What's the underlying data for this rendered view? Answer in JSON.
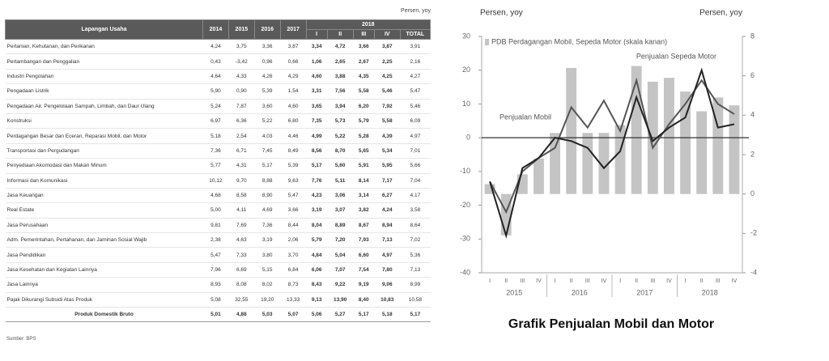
{
  "table": {
    "unit": "Persen, yoy",
    "header": {
      "label": "Lapangan Usaha",
      "years": [
        "2014",
        "2015",
        "2016",
        "2017"
      ],
      "group": "2018",
      "sub": [
        "I",
        "II",
        "III",
        "IV",
        "TOTAL"
      ]
    },
    "rows": [
      [
        "Pertanian, Kehutanan, dan Perikanan",
        "4,24",
        "3,75",
        "3,36",
        "3,87",
        "3,34",
        "4,72",
        "3,66",
        "3,87",
        "3,91"
      ],
      [
        "Pertambangan dan Penggalian",
        "0,43",
        "-3,42",
        "0,96",
        "0,66",
        "1,06",
        "2,65",
        "2,67",
        "2,25",
        "2,16"
      ],
      [
        "Industri Pengolahan",
        "4,64",
        "4,33",
        "4,26",
        "4,29",
        "4,60",
        "3,88",
        "4,35",
        "4,25",
        "4,27"
      ],
      [
        "Pengadaan Listrik",
        "5,90",
        "0,90",
        "5,39",
        "1,54",
        "3,31",
        "7,56",
        "5,58",
        "5,46",
        "5,47"
      ],
      [
        "Pengadaan Air, Pengelolaan Sampah, Limbah, dan Daur Ulang",
        "5,24",
        "7,87",
        "3,60",
        "4,60",
        "3,65",
        "3,94",
        "6,20",
        "7,92",
        "5,46"
      ],
      [
        "Konstruksi",
        "6,97",
        "6,36",
        "5,22",
        "6,80",
        "7,35",
        "5,73",
        "5,79",
        "5,58",
        "6,09"
      ],
      [
        "Perdagangan Besar dan Eceran, Reparasi Mobil, dan Motor",
        "5,18",
        "2,54",
        "4,03",
        "4,46",
        "4,99",
        "5,22",
        "5,28",
        "4,39",
        "4,97"
      ],
      [
        "Transportasi dan Pergudangan",
        "7,36",
        "6,71",
        "7,45",
        "8,49",
        "8,56",
        "8,70",
        "5,65",
        "5,34",
        "7,01"
      ],
      [
        "Penyediaan Akomodasi dan Makan Minum",
        "5,77",
        "4,31",
        "5,17",
        "5,39",
        "5,17",
        "5,60",
        "5,91",
        "5,95",
        "5,66"
      ],
      [
        "Informasi dan Komunikasi",
        "10,12",
        "9,70",
        "8,88",
        "9,63",
        "7,76",
        "5,11",
        "8,14",
        "7,17",
        "7,04"
      ],
      [
        "Jasa Keuangan",
        "4,68",
        "8,58",
        "8,90",
        "5,47",
        "4,23",
        "3,06",
        "3,14",
        "6,27",
        "4,17"
      ],
      [
        "Real Estate",
        "5,00",
        "4,11",
        "4,69",
        "3,66",
        "3,19",
        "3,07",
        "3,82",
        "4,24",
        "3,58"
      ],
      [
        "Jasa Perusahaan",
        "9,81",
        "7,69",
        "7,36",
        "8,44",
        "8,04",
        "8,89",
        "8,67",
        "8,94",
        "8,64"
      ],
      [
        "Adm. Pemerintahan, Pertahanan, dan Jaminan Sosial Wajib",
        "2,38",
        "4,63",
        "3,19",
        "2,06",
        "5,79",
        "7,20",
        "7,93",
        "7,13",
        "7,02"
      ],
      [
        "Jasa Pendidikan",
        "5,47",
        "7,33",
        "3,80",
        "3,70",
        "4,84",
        "5,04",
        "6,60",
        "4,97",
        "5,36"
      ],
      [
        "Jasa Kesehatan dan Kegiatan Lainnya",
        "7,96",
        "6,69",
        "5,15",
        "6,84",
        "6,06",
        "7,07",
        "7,54",
        "7,80",
        "7,13"
      ],
      [
        "Jasa Lainnya",
        "8,93",
        "8,08",
        "8,02",
        "8,73",
        "8,43",
        "9,22",
        "9,19",
        "9,06",
        "8,99"
      ],
      [
        "Pajak Dikurangi Subsidi Atas Produk",
        "5,08",
        "32,55",
        "19,20",
        "13,33",
        "9,13",
        "13,90",
        "8,40",
        "10,83",
        "10,58"
      ]
    ],
    "total": [
      "Produk Domestik Bruto",
      "5,01",
      "4,88",
      "5,03",
      "5,07",
      "5,06",
      "5,27",
      "5,17",
      "5,18",
      "5,17"
    ],
    "source": "Sumber: BPS"
  },
  "chart_data": {
    "type": "bar",
    "title": "Grafik Penjualan Mobil dan Motor",
    "y_label": "Persen, yoy",
    "y2_label": "Persen, yoy",
    "categories": [
      "I",
      "II",
      "III",
      "IV",
      "I",
      "II",
      "III",
      "IV",
      "I",
      "II",
      "III",
      "IV",
      "I",
      "II",
      "III",
      "IV"
    ],
    "groups": [
      "2015",
      "2016",
      "2017",
      "2018"
    ],
    "ylim": [
      -40,
      30
    ],
    "yticks": [
      -40,
      -30,
      -20,
      -10,
      0,
      10,
      20,
      30
    ],
    "y2lim": [
      -4,
      8
    ],
    "y2ticks": [
      -4,
      -2,
      0,
      2,
      4,
      6,
      8
    ],
    "series": [
      {
        "name": "PDB Perdagangan Mobil, Sepeda Motor (skala kanan)",
        "type": "bar",
        "axis": "y2",
        "color": "#c4c4c4",
        "values": [
          0.5,
          -2.1,
          1.0,
          1.8,
          3.1,
          6.4,
          3.1,
          3.1,
          3.5,
          6.5,
          5.7,
          5.9,
          5.2,
          4.2,
          4.9,
          4.5
        ]
      },
      {
        "name": "Penjualan Sepeda Motor",
        "type": "line",
        "color": "#555555",
        "values": [
          -13,
          -22,
          -10,
          -6,
          -3,
          9,
          3,
          11,
          2,
          17,
          -3,
          4,
          10,
          17,
          10,
          7
        ]
      },
      {
        "name": "Penjualan Mobil",
        "type": "line",
        "color": "#222222",
        "values": [
          -13,
          -29,
          -9,
          -6,
          0,
          -1,
          -3,
          -9,
          -4,
          12,
          -1,
          3,
          6,
          20,
          3,
          4
        ]
      }
    ]
  }
}
